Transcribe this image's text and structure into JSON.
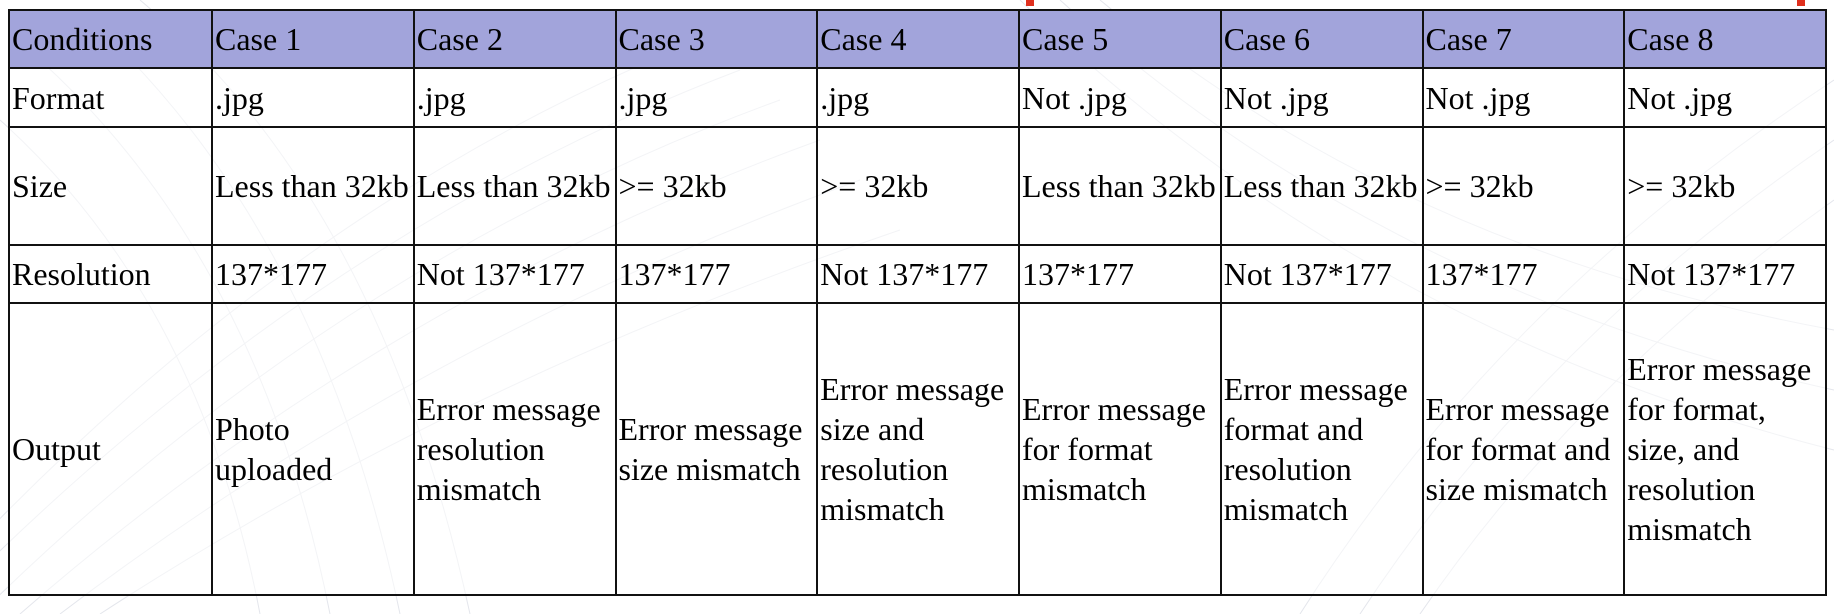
{
  "colors": {
    "header_bg": "#a2a4db",
    "border": "#111111",
    "accent": "#e0301e"
  },
  "table": {
    "headers": [
      "Conditions",
      "Case 1",
      "Case 2",
      "Case 3",
      "Case 4",
      "Case 5",
      "Case 6",
      "Case 7",
      "Case 8"
    ],
    "rows": [
      {
        "label": "Format",
        "cells": [
          ".jpg",
          ".jpg",
          ".jpg",
          ".jpg",
          "Not .jpg",
          "Not .jpg",
          "Not .jpg",
          "Not .jpg"
        ]
      },
      {
        "label": "Size",
        "cells": [
          "Less than 32kb",
          "Less than 32kb",
          ">= 32kb",
          ">= 32kb",
          "Less than 32kb",
          "Less than 32kb",
          ">= 32kb",
          ">= 32kb"
        ]
      },
      {
        "label": "Resolution",
        "cells": [
          "137*177",
          "Not 137*177",
          "137*177",
          "Not 137*177",
          "137*177",
          "Not 137*177",
          "137*177",
          "Not 137*177"
        ]
      },
      {
        "label": "Output",
        "cells": [
          "Photo uploaded",
          "Error message resolution mismatch",
          "Error message size mismatch",
          "Error message size and resolution mismatch",
          "Error message for format mismatch",
          "Error message format and resolution mismatch",
          "Error message for format and size mismatch",
          "Error message for format, size, and resolution mismatch"
        ]
      }
    ]
  }
}
